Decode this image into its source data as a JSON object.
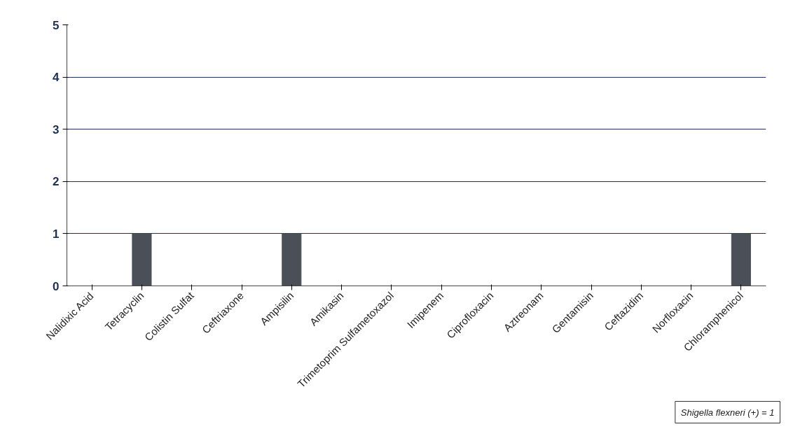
{
  "chart_data": {
    "type": "bar",
    "categories": [
      "Nalidixic Acid",
      "Tetracyclin",
      "Colistin Sulfat",
      "Ceftriaxone",
      "Ampisilin",
      "Amikasin",
      "Trimetoprim Sulfametoxazol",
      "Imipenem",
      "Ciprofloxacin",
      "Aztreonam",
      "Gentamisin",
      "Ceftazidim",
      "Norfloxacin",
      "Chloramphenicol"
    ],
    "values": [
      0,
      1,
      0,
      0,
      1,
      0,
      0,
      0,
      0,
      0,
      0,
      0,
      0,
      1
    ],
    "color": "#4a4f58",
    "ylim": [
      0,
      5
    ],
    "yticks": [
      0,
      1,
      2,
      3,
      4,
      5
    ],
    "grid": "y",
    "annotations": [
      "Shigella flexneri (+) = 1"
    ]
  }
}
